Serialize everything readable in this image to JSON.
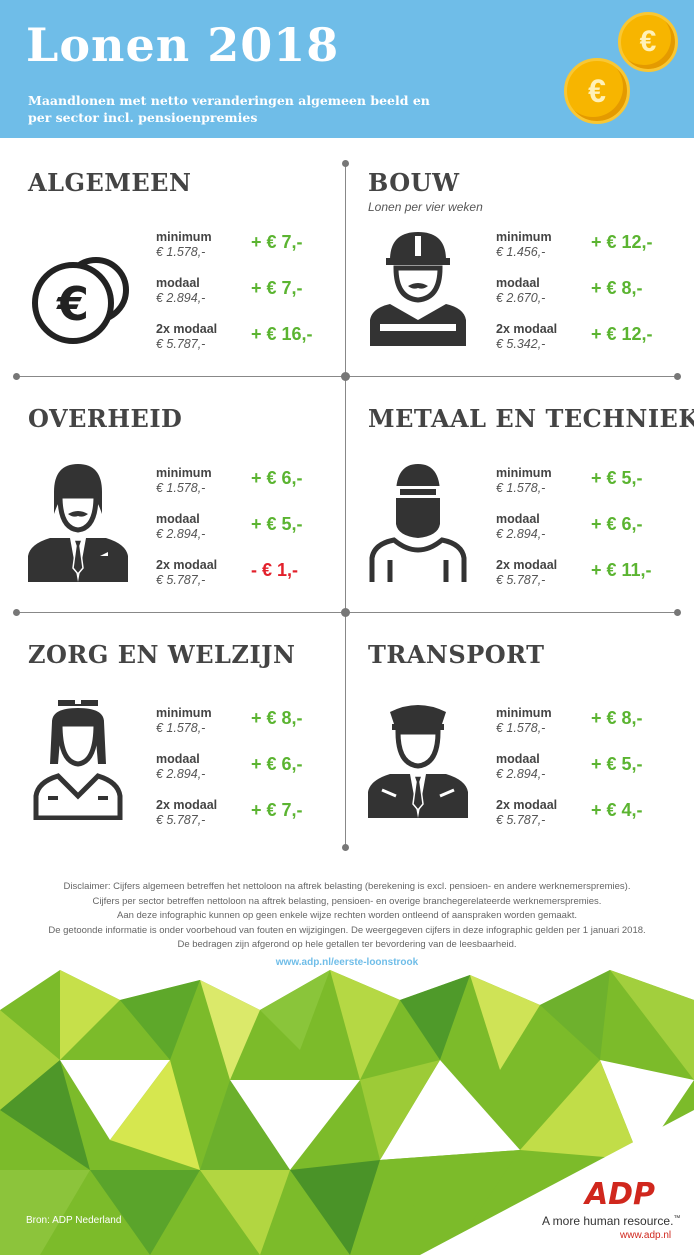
{
  "header": {
    "title": "Lonen 2018",
    "subtitle": "Maandlonen met netto veranderingen algemeen beeld en per sector incl. pensioenpremies"
  },
  "sections": [
    {
      "title": "ALGEMEEN",
      "note": "",
      "icon": "euro-coins-icon",
      "rows": [
        {
          "label": "minimum",
          "value": "€ 1.578,-",
          "change": "+ € 7,-"
        },
        {
          "label": "modaal",
          "value": "€ 2.894,-",
          "change": "+ € 7,-"
        },
        {
          "label": "2x modaal",
          "value": "€ 5.787,-",
          "change": "+ € 16,-"
        }
      ]
    },
    {
      "title": "BOUW",
      "note": "Lonen per vier weken",
      "icon": "construction-worker-icon",
      "rows": [
        {
          "label": "minimum",
          "value": "€ 1.456,-",
          "change": "+ € 12,-"
        },
        {
          "label": "modaal",
          "value": "€ 2.670,-",
          "change": "+ € 8,-"
        },
        {
          "label": "2x modaal",
          "value": "€ 5.342,-",
          "change": "+ € 12,-"
        }
      ]
    },
    {
      "title": "OVERHEID",
      "note": "",
      "icon": "civil-servant-icon",
      "rows": [
        {
          "label": "minimum",
          "value": "€ 1.578,-",
          "change": "+ € 6,-"
        },
        {
          "label": "modaal",
          "value": "€ 2.894,-",
          "change": "+ € 5,-"
        },
        {
          "label": "2x modaal",
          "value": "€ 5.787,-",
          "change": "- € 1,-"
        }
      ]
    },
    {
      "title": "METAAL EN TECHNIEK",
      "note": "",
      "icon": "welder-icon",
      "rows": [
        {
          "label": "minimum",
          "value": "€ 1.578,-",
          "change": "+ € 5,-"
        },
        {
          "label": "modaal",
          "value": "€ 2.894,-",
          "change": "+ € 6,-"
        },
        {
          "label": "2x modaal",
          "value": "€ 5.787,-",
          "change": "+ € 11,-"
        }
      ]
    },
    {
      "title": "ZORG EN WELZIJN",
      "note": "",
      "icon": "nurse-icon",
      "rows": [
        {
          "label": "minimum",
          "value": "€ 1.578,-",
          "change": "+ € 8,-"
        },
        {
          "label": "modaal",
          "value": "€ 2.894,-",
          "change": "+ € 6,-"
        },
        {
          "label": "2x modaal",
          "value": "€ 5.787,-",
          "change": "+ € 7,-"
        }
      ]
    },
    {
      "title": "TRANSPORT",
      "note": "",
      "icon": "driver-icon",
      "rows": [
        {
          "label": "minimum",
          "value": "€ 1.578,-",
          "change": "+ € 8,-"
        },
        {
          "label": "modaal",
          "value": "€ 2.894,-",
          "change": "+ € 5,-"
        },
        {
          "label": "2x modaal",
          "value": "€ 5.787,-",
          "change": "+ € 4,-"
        }
      ]
    }
  ],
  "disclaimer": [
    "Disclaimer: Cijfers algemeen betreffen het nettoloon na aftrek belasting (berekening is excl. pensioen- en  andere werknemerspremies).",
    "Cijfers per sector betreffen nettoloon na aftrek belasting, pensioen- en overige branchegerelateerde werknemerspremies.",
    "Aan deze infographic kunnen op geen enkele wijze rechten worden ontleend of aanspraken worden gemaakt.",
    "De getoonde informatie is onder voorbehoud van fouten en wijzigingen. De weergegeven cijfers in deze infographic gelden per 1 januari 2018.",
    "De bedragen zijn afgerond op hele getallen ter bevordering van de leesbaarheid."
  ],
  "link": "www.adp.nl/eerste-loonstrook",
  "footer": {
    "source": "Bron: ADP Nederland",
    "logo": "ADP",
    "tagline": "A more human resource.",
    "trademark": "™",
    "site": "www.adp.nl"
  },
  "colors": {
    "header_bg": "#6fbde8",
    "positive": "#5bb431",
    "negative": "#e2202b",
    "coin": "#f7b500",
    "adp_red": "#d0271d"
  }
}
